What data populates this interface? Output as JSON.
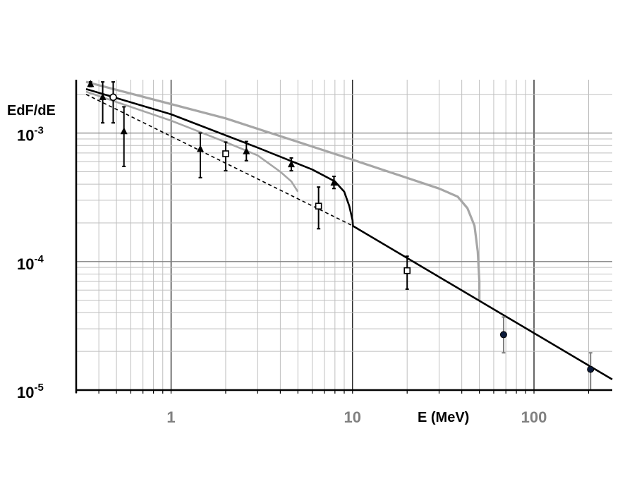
{
  "chart_data": {
    "type": "scatter",
    "xlabel": "E (MeV)",
    "ylabel": "EdF/dE",
    "x_scale": "log",
    "y_scale": "log",
    "xlim": [
      0.3,
      270
    ],
    "ylim": [
      1e-05,
      0.0026
    ],
    "x_ticks": [
      {
        "value": 1,
        "label": "1"
      },
      {
        "value": 10,
        "label": "10"
      },
      {
        "value": 100,
        "label": "100"
      }
    ],
    "y_ticks": [
      {
        "value": 0.001,
        "base": "10",
        "exp": "-3"
      },
      {
        "value": 0.0001,
        "base": "10",
        "exp": "-4"
      },
      {
        "value": 1e-05,
        "base": "10",
        "exp": "-5"
      }
    ],
    "grid": true,
    "colors": {
      "black": "#000000",
      "gray": "#a6a6a6",
      "grid": "#bfbfbf",
      "navy": "#0b1a3a"
    },
    "curves": [
      {
        "style": "solid-gray-thick",
        "points": [
          [
            0.34,
            0.0025
          ],
          [
            2,
            0.0013
          ],
          [
            10,
            0.00062
          ],
          [
            30,
            0.00037
          ],
          [
            38,
            0.00032
          ],
          [
            43,
            0.00026
          ],
          [
            47,
            0.00019
          ],
          [
            49,
            0.00012
          ],
          [
            50,
            7e-05
          ],
          [
            50,
            5e-05
          ]
        ]
      },
      {
        "style": "solid-gray",
        "points": [
          [
            0.34,
            0.0021
          ],
          [
            1,
            0.00125
          ],
          [
            2,
            0.00085
          ],
          [
            3,
            0.00067
          ],
          [
            4,
            0.0005
          ],
          [
            4.6,
            0.00042
          ],
          [
            5,
            0.00035
          ]
        ]
      },
      {
        "style": "solid-black",
        "points": [
          [
            0.34,
            0.0022
          ],
          [
            1,
            0.0014
          ],
          [
            3,
            0.00077
          ],
          [
            6,
            0.00052
          ],
          [
            8,
            0.00042
          ],
          [
            9,
            0.00035
          ],
          [
            9.6,
            0.00027
          ],
          [
            10,
            0.00021
          ],
          [
            10.05,
            0.00019
          ]
        ]
      },
      {
        "style": "solid-black",
        "points": [
          [
            10,
            0.00019
          ],
          [
            270,
            1.21e-05
          ]
        ]
      },
      {
        "style": "dashed-black",
        "points": [
          [
            0.34,
            0.002
          ],
          [
            10,
            0.00019
          ]
        ]
      }
    ],
    "series": [
      {
        "marker": "triangle",
        "points": [
          {
            "x": 0.36,
            "y": 0.0024,
            "lo": 0.0023,
            "hi": 0.0025
          },
          {
            "x": 0.42,
            "y": 0.0019,
            "lo": 0.0012,
            "hi": 0.0025
          },
          {
            "x": 0.55,
            "y": 0.00103,
            "lo": 0.00055,
            "hi": 0.0016
          },
          {
            "x": 1.45,
            "y": 0.00075,
            "lo": 0.00045,
            "hi": 0.001
          },
          {
            "x": 2.6,
            "y": 0.00072,
            "lo": 0.00061,
            "hi": 0.00086
          },
          {
            "x": 4.6,
            "y": 0.00057,
            "lo": 0.00051,
            "hi": 0.00064
          },
          {
            "x": 7.9,
            "y": 0.00041,
            "lo": 0.00037,
            "hi": 0.00046
          }
        ]
      },
      {
        "marker": "circle-open",
        "points": [
          {
            "x": 0.48,
            "y": 0.0019,
            "lo": 0.0012,
            "hi": 0.0025
          }
        ]
      },
      {
        "marker": "square-open",
        "points": [
          {
            "x": 2.0,
            "y": 0.00069,
            "lo": 0.00051,
            "hi": 0.00085
          },
          {
            "x": 6.5,
            "y": 0.00027,
            "lo": 0.00018,
            "hi": 0.00038
          },
          {
            "x": 20,
            "y": 8.5e-05,
            "lo": 6.1e-05,
            "hi": 0.00011
          }
        ]
      },
      {
        "marker": "circle-filled",
        "points": [
          {
            "x": 68,
            "y": 2.7e-05,
            "lo": 1.95e-05,
            "hi": 3.7e-05
          },
          {
            "x": 205,
            "y": 1.45e-05,
            "lo": 1e-05,
            "hi": 1.95e-05
          }
        ]
      }
    ]
  }
}
